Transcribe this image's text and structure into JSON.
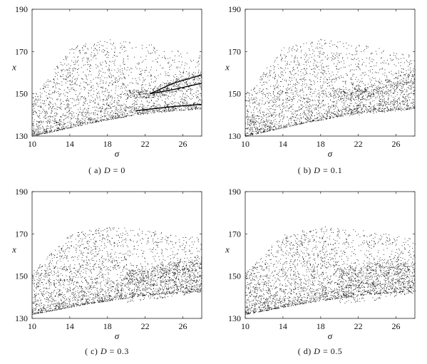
{
  "chart_data": [
    {
      "type": "scatter",
      "panel": "a",
      "caption_prefix": "( a)",
      "caption_var": "D",
      "caption_eq": "=",
      "caption_value": "0",
      "xlabel": "σ",
      "ylabel": "x",
      "xlim": [
        10,
        28
      ],
      "ylim": [
        130,
        190
      ],
      "xticks": [
        "10",
        "14",
        "18",
        "22",
        "26"
      ],
      "yticks": [
        "130",
        "150",
        "170",
        "190"
      ],
      "noise": 0.0,
      "points": 2600,
      "band_floor": [
        [
          10,
          130
        ],
        [
          16,
          136
        ],
        [
          22,
          141
        ],
        [
          28,
          143
        ]
      ],
      "band_ceiling": [
        [
          10,
          148
        ],
        [
          14,
          172
        ],
        [
          18,
          176
        ],
        [
          22,
          174
        ],
        [
          28,
          168
        ]
      ],
      "branches": [
        {
          "name": "upper",
          "values": [
            [
              22.5,
              150
            ],
            [
              25,
              155
            ],
            [
              28,
              159
            ]
          ]
        },
        {
          "name": "middle",
          "values": [
            [
              22.5,
              150
            ],
            [
              25,
              152
            ],
            [
              28,
              155
            ]
          ]
        },
        {
          "name": "lower",
          "values": [
            [
              21,
              142
            ],
            [
              25,
              144
            ],
            [
              28,
              145
            ]
          ]
        }
      ]
    },
    {
      "type": "scatter",
      "panel": "b",
      "caption_prefix": "( b)",
      "caption_var": "D",
      "caption_eq": "=",
      "caption_value": "0.1",
      "xlabel": "σ",
      "ylabel": "x",
      "xlim": [
        10,
        28
      ],
      "ylim": [
        130,
        190
      ],
      "xticks": [
        "10",
        "14",
        "18",
        "22",
        "26"
      ],
      "yticks": [
        "130",
        "150",
        "170",
        "190"
      ],
      "noise": 0.1,
      "points": 2800,
      "band_floor": [
        [
          10,
          130
        ],
        [
          16,
          136
        ],
        [
          22,
          141
        ],
        [
          28,
          143
        ]
      ],
      "band_ceiling": [
        [
          10,
          150
        ],
        [
          14,
          172
        ],
        [
          18,
          176
        ],
        [
          22,
          174
        ],
        [
          28,
          168
        ]
      ],
      "branches": [
        {
          "name": "upper",
          "values": [
            [
              22.5,
              150
            ],
            [
              25,
              155
            ],
            [
              28,
              158
            ]
          ]
        },
        {
          "name": "middle",
          "values": [
            [
              22.5,
              149
            ],
            [
              25,
              152
            ],
            [
              28,
              154
            ]
          ]
        },
        {
          "name": "lower",
          "values": [
            [
              21,
              142
            ],
            [
              25,
              144
            ],
            [
              28,
              145
            ]
          ]
        }
      ]
    },
    {
      "type": "scatter",
      "panel": "c",
      "caption_prefix": "( c)",
      "caption_var": "D",
      "caption_eq": "=",
      "caption_value": "0.3",
      "xlabel": "σ",
      "ylabel": "x",
      "xlim": [
        10,
        28
      ],
      "ylim": [
        130,
        190
      ],
      "xticks": [
        "10",
        "14",
        "18",
        "22",
        "26"
      ],
      "yticks": [
        "130",
        "150",
        "170",
        "190"
      ],
      "noise": 0.3,
      "points": 3000,
      "band_floor": [
        [
          10,
          132
        ],
        [
          16,
          137
        ],
        [
          22,
          141
        ],
        [
          28,
          143
        ]
      ],
      "band_ceiling": [
        [
          10,
          152
        ],
        [
          14,
          170
        ],
        [
          18,
          174
        ],
        [
          22,
          172
        ],
        [
          28,
          168
        ]
      ],
      "branches": [
        {
          "name": "upper",
          "values": [
            [
              22,
              150
            ],
            [
              25,
              154
            ],
            [
              28,
              157
            ]
          ]
        },
        {
          "name": "middle",
          "values": [
            [
              22,
              149
            ],
            [
              25,
              151
            ],
            [
              28,
              153
            ]
          ]
        },
        {
          "name": "lower",
          "values": [
            [
              20,
              141
            ],
            [
              25,
              144
            ],
            [
              28,
              146
            ]
          ]
        }
      ]
    },
    {
      "type": "scatter",
      "panel": "d",
      "caption_prefix": "( d)",
      "caption_var": "D",
      "caption_eq": "=",
      "caption_value": "0.5",
      "xlabel": "σ",
      "ylabel": "x",
      "xlim": [
        10,
        28
      ],
      "ylim": [
        130,
        190
      ],
      "xticks": [
        "10",
        "14",
        "18",
        "22",
        "26"
      ],
      "yticks": [
        "130",
        "150",
        "170",
        "190"
      ],
      "noise": 0.5,
      "points": 3000,
      "band_floor": [
        [
          10,
          132
        ],
        [
          16,
          137
        ],
        [
          22,
          141
        ],
        [
          28,
          143
        ]
      ],
      "band_ceiling": [
        [
          10,
          152
        ],
        [
          14,
          170
        ],
        [
          18,
          174
        ],
        [
          22,
          172
        ],
        [
          28,
          168
        ]
      ],
      "branches": [
        {
          "name": "upper",
          "values": [
            [
              22,
              150
            ],
            [
              25,
              154
            ],
            [
              28,
              157
            ]
          ]
        },
        {
          "name": "middle",
          "values": [
            [
              22,
              149
            ],
            [
              25,
              151
            ],
            [
              28,
              153
            ]
          ]
        },
        {
          "name": "lower",
          "values": [
            [
              20,
              141
            ],
            [
              25,
              144
            ],
            [
              28,
              146
            ]
          ]
        }
      ]
    }
  ]
}
